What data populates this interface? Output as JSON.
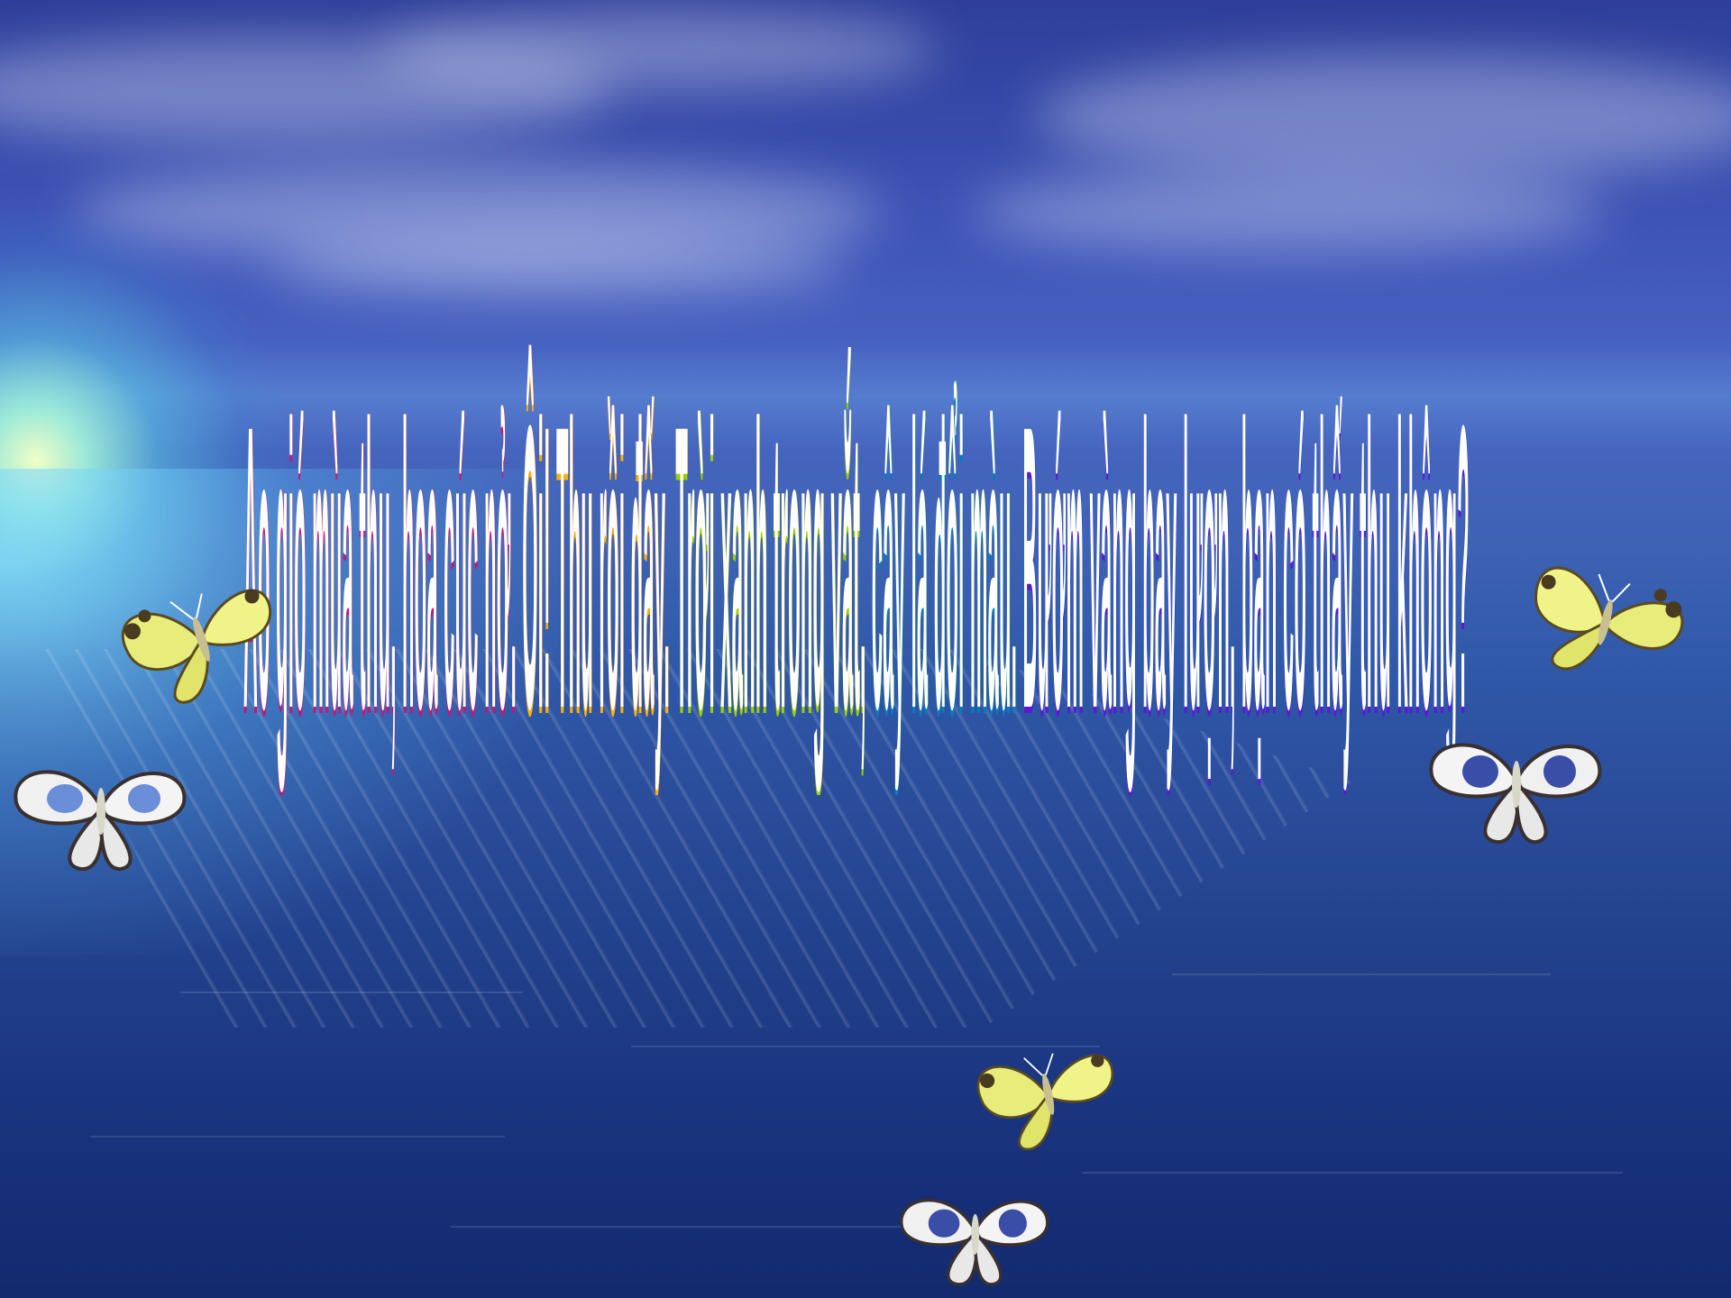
{
  "slide": {
    "background": {
      "sky_color": "#3f55b8",
      "sea_color": "#1c3682",
      "sun_glow_color": "#d8ffd0"
    },
    "wordart": {
      "text_parts": [
        {
          "text": "Ao gió mùa thu, hoa cúc nở. ",
          "tone": "r"
        },
        {
          "text": "Ôi! Thu rồi đấy. ",
          "tone": "o"
        },
        {
          "text": "Trời xanh trong vắt, ",
          "tone": "y"
        },
        {
          "text": "cây lá đổi màu. ",
          "tone": "g"
        },
        {
          "text": "Bướm vàng bay lượn, bạn có thấy thu không?",
          "tone": "b"
        }
      ],
      "outline_colors": [
        "#c01878",
        "#e02040",
        "#ff7a00",
        "#ffb000",
        "#d8d800",
        "#10a050",
        "#0a7ac0",
        "#1a3ad8",
        "#5a1ad0"
      ]
    },
    "butterflies": [
      {
        "kind": "yellow",
        "icon": "yellow-butterfly-icon"
      },
      {
        "kind": "white",
        "icon": "white-butterfly-icon"
      },
      {
        "kind": "yellow",
        "icon": "yellow-butterfly-icon"
      },
      {
        "kind": "white",
        "icon": "white-butterfly-icon"
      },
      {
        "kind": "yellow",
        "icon": "yellow-butterfly-icon"
      },
      {
        "kind": "white",
        "icon": "white-butterfly-icon"
      }
    ]
  }
}
